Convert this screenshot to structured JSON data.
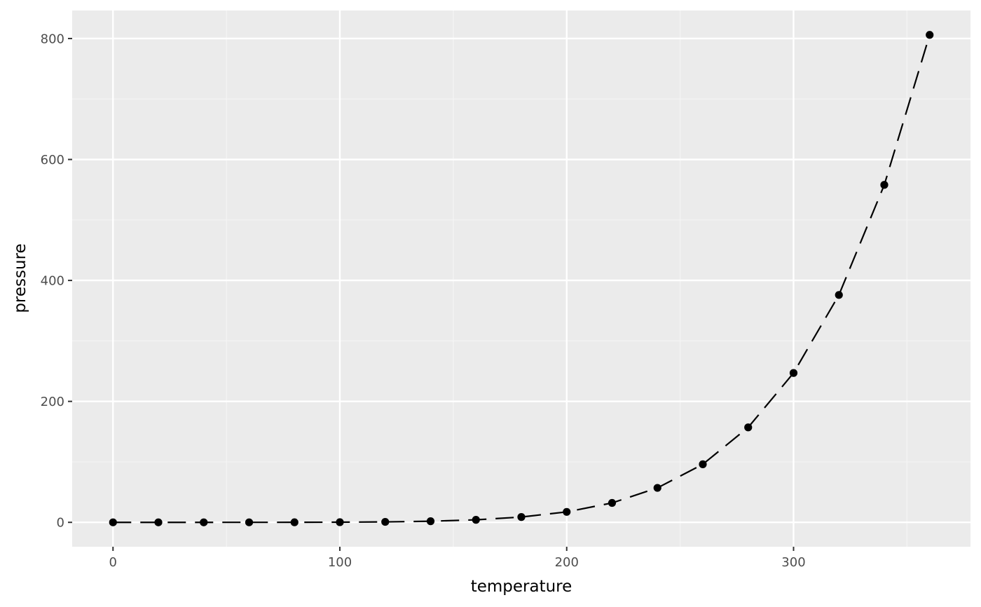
{
  "chart_data": {
    "type": "line",
    "xlabel": "temperature",
    "ylabel": "pressure",
    "x_ticks": [
      0,
      100,
      200,
      300
    ],
    "y_ticks": [
      0,
      200,
      400,
      600,
      800
    ],
    "xlim": [
      -18,
      378
    ],
    "ylim": [
      -40.3,
      846.3
    ],
    "grid": true,
    "colors": {
      "panel_background": "#ebebeb",
      "grid_major": "#ffffff",
      "grid_minor": "#f4f4f4",
      "line": "#000000",
      "point": "#000000",
      "tick_label": "#4d4d4d",
      "axis_title": "#000000"
    },
    "series": [
      {
        "x": [
          0,
          20,
          40,
          60,
          80,
          100,
          120,
          140,
          160,
          180,
          200,
          220,
          240,
          260,
          280,
          300,
          320,
          340,
          360
        ],
        "y": [
          0.0002,
          0.0012,
          0.006,
          0.03,
          0.09,
          0.27,
          0.75,
          1.85,
          4.2,
          8.8,
          17.3,
          32.1,
          57.0,
          96.0,
          157.0,
          247.0,
          376.0,
          558.0,
          806.0
        ]
      }
    ]
  }
}
